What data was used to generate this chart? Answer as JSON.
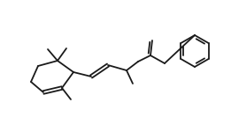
{
  "bg_color": "#ffffff",
  "line_color": "#1a1a1a",
  "line_width": 1.3,
  "fig_width": 2.61,
  "fig_height": 1.58,
  "dpi": 100
}
